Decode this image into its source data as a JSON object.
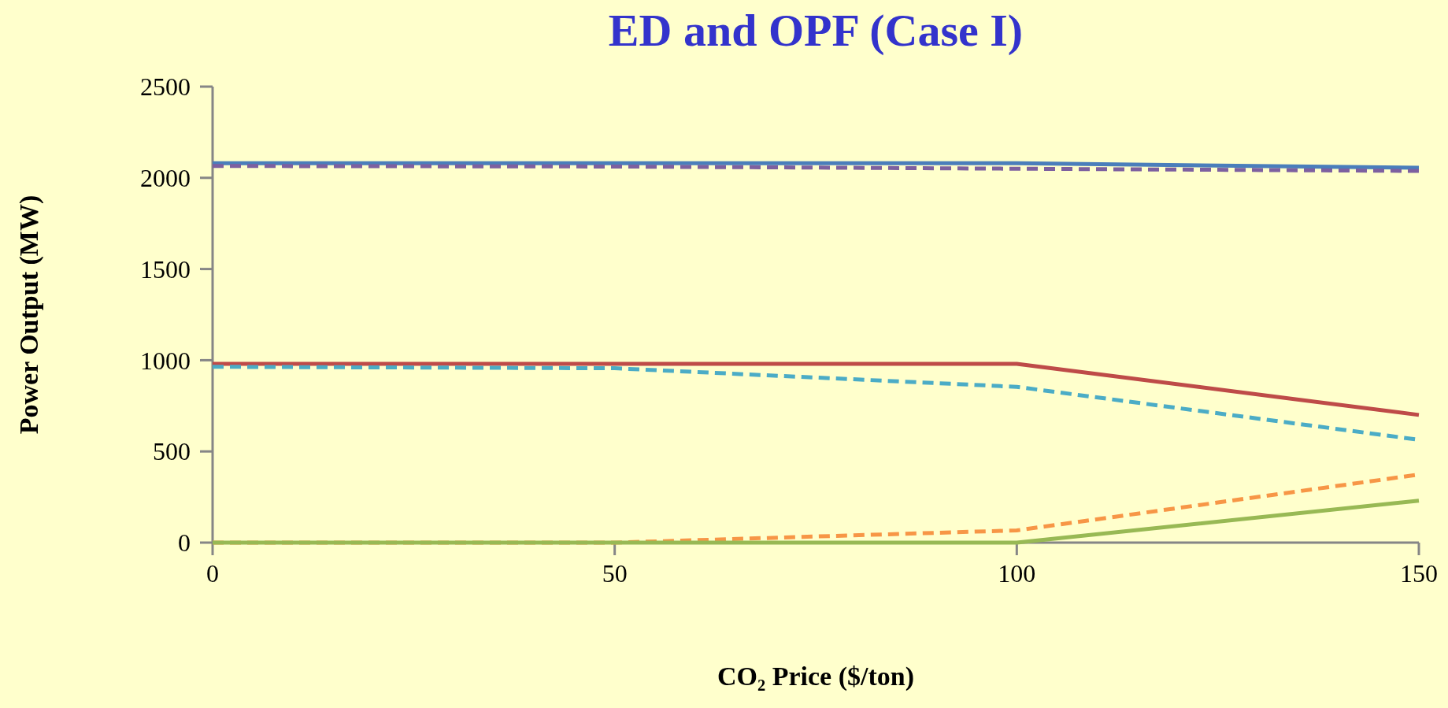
{
  "chart_data": {
    "type": "line",
    "title": "ED and OPF (Case I)",
    "xlabel": "CO₂ Price ($/ton)",
    "ylabel": "Power Output (MW)",
    "x": [
      0,
      50,
      100,
      150
    ],
    "xlim": [
      0,
      150
    ],
    "xticks": [
      0,
      50,
      100,
      150
    ],
    "ylim": [
      0,
      2500
    ],
    "yticks": [
      0,
      500,
      1000,
      1500,
      2000,
      2500
    ],
    "grid": false,
    "marker": "none",
    "series": [
      {
        "color": "#4a7ebb",
        "line_style": "solid",
        "values": [
          2080,
          2080,
          2080,
          2055
        ]
      },
      {
        "color": "#7d60a0",
        "line_style": "dashed",
        "values": [
          2065,
          2062,
          2050,
          2038
        ]
      },
      {
        "color": "#be4b48",
        "line_style": "solid",
        "values": [
          980,
          980,
          980,
          700
        ]
      },
      {
        "color": "#4bacc6",
        "line_style": "dashed",
        "values": [
          964,
          956,
          854,
          564
        ]
      },
      {
        "color": "#f79646",
        "line_style": "dashed",
        "values": [
          0,
          0,
          67,
          373
        ]
      },
      {
        "color": "#98b954",
        "line_style": "solid",
        "values": [
          0,
          0,
          0,
          230
        ]
      }
    ]
  }
}
